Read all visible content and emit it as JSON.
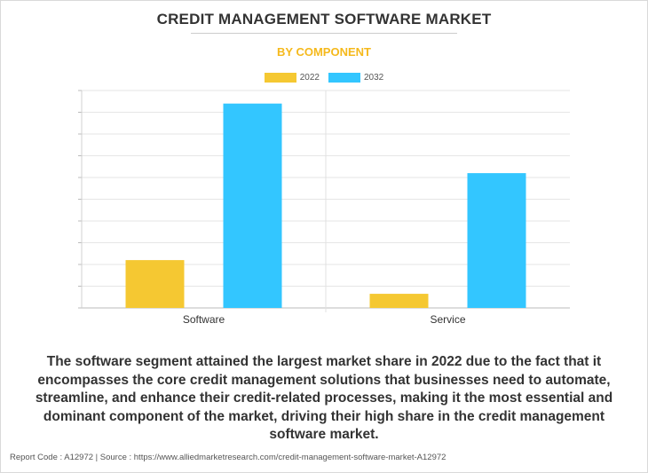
{
  "header": {
    "title": "CREDIT MANAGEMENT SOFTWARE MARKET",
    "subtitle": "BY COMPONENT"
  },
  "colors": {
    "series_2022": "#f5c832",
    "series_2032": "#33c6ff",
    "subtitle": "#f5b91c"
  },
  "chart_data": {
    "type": "bar",
    "categories": [
      "Software",
      "Service"
    ],
    "series": [
      {
        "name": "2022",
        "values": [
          2.2,
          0.65
        ]
      },
      {
        "name": "2032",
        "values": [
          9.4,
          6.2
        ]
      }
    ],
    "ylim": [
      0,
      10
    ],
    "grid": true,
    "legend_position": "top-center",
    "xlabel": "",
    "ylabel": ""
  },
  "caption": "The software segment attained the largest market share in 2022 due to the fact that it encompasses the core credit management solutions that businesses need to automate, streamline, and enhance their credit-related processes, making it the most essential and dominant component of the market, driving their high share in the credit management software market.",
  "footer": "Report Code : A12972  |  Source : https://www.alliedmarketresearch.com/credit-management-software-market-A12972"
}
